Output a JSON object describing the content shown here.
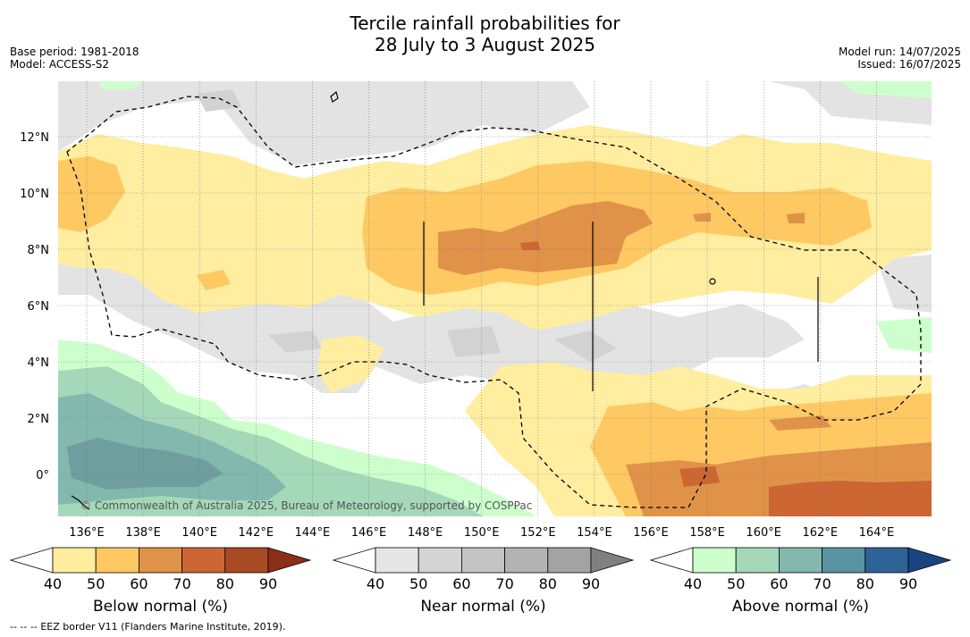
{
  "header": {
    "title_line1": "Tercile rainfall probabilities for",
    "title_line2": "28 July to 3 August 2025",
    "base_period": "Base period: 1981-2018",
    "model": "Model: ACCESS-S2",
    "model_run": "Model run: 14/07/2025",
    "issued": "Issued: 16/07/2025"
  },
  "map": {
    "lat_labels": [
      "12°N",
      "10°N",
      "8°N",
      "6°N",
      "4°N",
      "2°N",
      "0°"
    ],
    "lon_labels": [
      "136°E",
      "138°E",
      "140°E",
      "142°E",
      "144°E",
      "146°E",
      "148°E",
      "150°E",
      "152°E",
      "154°E",
      "156°E",
      "158°E",
      "160°E",
      "162°E",
      "164°E"
    ],
    "watermark": "© Commonwealth of Australia 2025, Bureau of Meteorology, supported by COSPPac"
  },
  "colorbars": [
    {
      "title": "Below normal (%)",
      "tick_labels": [
        "40",
        "50",
        "60",
        "70",
        "80",
        "90"
      ],
      "colors": [
        "#ffffff",
        "#ffeda0",
        "#fec863",
        "#e09249",
        "#cc6633",
        "#aa4a24",
        "#8b2e18"
      ]
    },
    {
      "title": "Near normal (%)",
      "tick_labels": [
        "40",
        "50",
        "60",
        "70",
        "80",
        "90"
      ],
      "colors": [
        "#ffffff",
        "#e6e6e6",
        "#d4d4d4",
        "#c4c4c4",
        "#b3b3b3",
        "#a3a3a3",
        "#808080"
      ]
    },
    {
      "title": "Above normal (%)",
      "tick_labels": [
        "40",
        "50",
        "60",
        "70",
        "80",
        "90"
      ],
      "colors": [
        "#ffffff",
        "#ccffcc",
        "#a5d8b8",
        "#82b8ad",
        "#5b93a3",
        "#2e6397",
        "#1a4480"
      ]
    }
  ],
  "footer": {
    "legend_symbol": "-- -- --",
    "eez_label": "EEZ border V11 (Flanders Marine Institute, 2019)."
  }
}
